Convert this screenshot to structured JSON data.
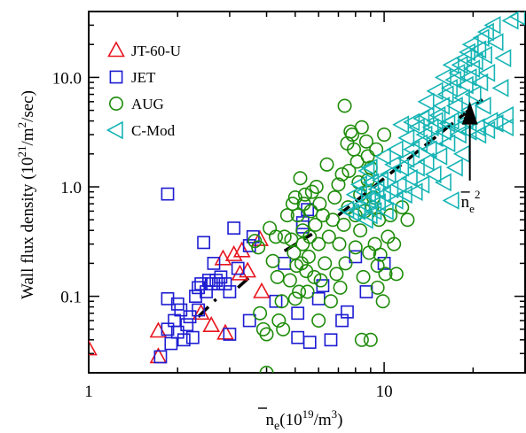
{
  "chart_data": {
    "type": "scatter",
    "xlabel": "n̄e(10¹⁹/m³)",
    "ylabel": "Wall flux density (10²¹/m²/sec)",
    "xscale": "log",
    "yscale": "log",
    "xlim": [
      1,
      30
    ],
    "ylim": [
      0.02,
      40
    ],
    "x_ticks": [
      1,
      10
    ],
    "x_tick_labels": [
      "1",
      "10"
    ],
    "y_ticks": [
      0.1,
      1,
      10
    ],
    "y_tick_labels": [
      "0.1",
      "1.0",
      "10.0"
    ],
    "grid": false,
    "legend_placement": "top-left",
    "annotation": "n̄e²",
    "series": [
      {
        "name": "JT-60-U",
        "marker": "triangle-up",
        "color": "#e8141e",
        "points": [
          [
            1.0,
            0.033
          ],
          [
            1.72,
            0.048
          ],
          [
            1.72,
            0.028
          ],
          [
            2.4,
            0.07
          ],
          [
            2.6,
            0.054
          ],
          [
            2.9,
            0.046
          ],
          [
            2.85,
            0.22
          ],
          [
            3.1,
            0.24
          ],
          [
            3.25,
            0.16
          ],
          [
            3.3,
            0.26
          ],
          [
            3.45,
            0.17
          ],
          [
            3.8,
            0.33
          ],
          [
            3.85,
            0.11
          ]
        ]
      },
      {
        "name": "JET",
        "marker": "square",
        "color": "#1c1cd2",
        "points": [
          [
            1.75,
            0.028
          ],
          [
            1.85,
            0.86
          ],
          [
            1.85,
            0.095
          ],
          [
            1.85,
            0.05
          ],
          [
            1.9,
            0.037
          ],
          [
            1.95,
            0.06
          ],
          [
            2.0,
            0.047
          ],
          [
            2.0,
            0.085
          ],
          [
            2.05,
            0.075
          ],
          [
            2.1,
            0.04
          ],
          [
            2.15,
            0.055
          ],
          [
            2.2,
            0.065
          ],
          [
            2.25,
            0.042
          ],
          [
            2.3,
            0.1
          ],
          [
            2.35,
            0.12
          ],
          [
            2.35,
            0.075
          ],
          [
            2.4,
            0.13
          ],
          [
            2.45,
            0.31
          ],
          [
            2.5,
            0.11
          ],
          [
            2.55,
            0.14
          ],
          [
            2.6,
            0.13
          ],
          [
            2.65,
            0.2
          ],
          [
            2.7,
            0.14
          ],
          [
            2.75,
            0.13
          ],
          [
            2.8,
            0.15
          ],
          [
            2.9,
            0.13
          ],
          [
            3.0,
            0.11
          ],
          [
            3.1,
            0.42
          ],
          [
            3.2,
            0.18
          ],
          [
            3.5,
            0.29
          ],
          [
            3.6,
            0.35
          ],
          [
            4.3,
            0.09
          ],
          [
            5.1,
            0.07
          ],
          [
            5.1,
            0.042
          ],
          [
            5.6,
            0.038
          ],
          [
            6.0,
            0.095
          ],
          [
            6.2,
            0.125
          ],
          [
            7.2,
            0.06
          ],
          [
            7.5,
            0.072
          ],
          [
            8.0,
            0.23
          ],
          [
            8.7,
            0.11
          ],
          [
            10.0,
            0.2
          ],
          [
            5.5,
            0.62
          ],
          [
            3.0,
            0.045
          ],
          [
            3.5,
            0.06
          ],
          [
            5.3,
            0.43
          ],
          [
            4.6,
            0.2
          ],
          [
            5.3,
            0.47
          ],
          [
            6.6,
            0.04
          ]
        ]
      },
      {
        "name": "AUG",
        "marker": "circle",
        "color": "#1e8c0a",
        "points": [
          [
            3.65,
            0.32
          ],
          [
            3.75,
            0.28
          ],
          [
            3.8,
            0.07
          ],
          [
            3.9,
            0.05
          ],
          [
            4.0,
            0.045
          ],
          [
            4.0,
            0.02
          ],
          [
            4.1,
            0.42
          ],
          [
            4.2,
            0.21
          ],
          [
            4.3,
            0.35
          ],
          [
            4.35,
            0.15
          ],
          [
            4.4,
            0.06
          ],
          [
            4.55,
            0.05
          ],
          [
            4.6,
            0.35
          ],
          [
            4.7,
            0.55
          ],
          [
            4.8,
            0.14
          ],
          [
            4.85,
            0.33
          ],
          [
            4.9,
            0.7
          ],
          [
            4.95,
            0.25
          ],
          [
            5.0,
            0.8
          ],
          [
            5.0,
            0.095
          ],
          [
            5.05,
            0.19
          ],
          [
            5.1,
            0.55
          ],
          [
            5.15,
            0.11
          ],
          [
            5.2,
            1.2
          ],
          [
            5.25,
            0.2
          ],
          [
            5.3,
            0.3
          ],
          [
            5.3,
            0.4
          ],
          [
            5.35,
            0.7
          ],
          [
            5.4,
            0.85
          ],
          [
            5.45,
            0.17
          ],
          [
            5.5,
            0.11
          ],
          [
            5.55,
            0.23
          ],
          [
            5.6,
            0.35
          ],
          [
            5.65,
            0.6
          ],
          [
            5.7,
            0.9
          ],
          [
            5.8,
            0.15
          ],
          [
            5.85,
            0.45
          ],
          [
            5.9,
            1.0
          ],
          [
            6.0,
            0.3
          ],
          [
            6.05,
            0.7
          ],
          [
            6.1,
            0.14
          ],
          [
            6.2,
            0.55
          ],
          [
            6.3,
            0.2
          ],
          [
            6.4,
            1.6
          ],
          [
            6.5,
            0.35
          ],
          [
            6.6,
            0.09
          ],
          [
            6.7,
            0.5
          ],
          [
            6.8,
            0.8
          ],
          [
            6.9,
            0.16
          ],
          [
            7.0,
            1.05
          ],
          [
            7.05,
            0.3
          ],
          [
            7.1,
            0.12
          ],
          [
            7.2,
            1.3
          ],
          [
            7.3,
            0.45
          ],
          [
            7.35,
            5.5
          ],
          [
            7.4,
            0.2
          ],
          [
            7.5,
            2.5
          ],
          [
            7.55,
            0.65
          ],
          [
            7.6,
            1.4
          ],
          [
            7.7,
            3.2
          ],
          [
            7.8,
            3.0
          ],
          [
            7.9,
            2.2
          ],
          [
            8.0,
            0.55
          ],
          [
            8.1,
            1.7
          ],
          [
            8.2,
            1.1
          ],
          [
            8.3,
            0.4
          ],
          [
            8.4,
            3.5
          ],
          [
            8.5,
            0.15
          ],
          [
            8.6,
            0.6
          ],
          [
            8.7,
            2.6
          ],
          [
            8.8,
            1.9
          ],
          [
            8.9,
            0.25
          ],
          [
            9.0,
            0.04
          ],
          [
            9.0,
            1.5
          ],
          [
            9.1,
            0.65
          ],
          [
            9.3,
            0.3
          ],
          [
            9.4,
            2.2
          ],
          [
            9.5,
            0.19
          ],
          [
            9.6,
            0.5
          ],
          [
            9.7,
            0.24
          ],
          [
            9.9,
            0.09
          ],
          [
            10.0,
            3.0
          ],
          [
            10.1,
            0.16
          ],
          [
            10.3,
            0.35
          ],
          [
            10.5,
            0.55
          ],
          [
            11.5,
            0.65
          ],
          [
            12.0,
            0.5
          ],
          [
            8.4,
            0.04
          ],
          [
            9.5,
            0.12
          ],
          [
            10.8,
            0.3
          ],
          [
            11.0,
            0.16
          ],
          [
            9.2,
            0.8
          ],
          [
            8.8,
            1.15
          ],
          [
            8.3,
            0.85
          ],
          [
            8.0,
            0.28
          ],
          [
            6.0,
            0.06
          ],
          [
            4.5,
            0.09
          ]
        ]
      },
      {
        "name": "C-Mod",
        "marker": "triangle-left",
        "color": "#16b4b4",
        "points": [
          [
            7.5,
            0.62
          ],
          [
            7.8,
            0.58
          ],
          [
            8.0,
            0.85
          ],
          [
            8.2,
            0.6
          ],
          [
            8.3,
            1.05
          ],
          [
            8.5,
            0.7
          ],
          [
            8.6,
            0.9
          ],
          [
            8.7,
            0.5
          ],
          [
            8.8,
            1.4
          ],
          [
            8.9,
            0.75
          ],
          [
            9.0,
            0.55
          ],
          [
            9.1,
            1.1
          ],
          [
            9.2,
            0.82
          ],
          [
            9.3,
            0.6
          ],
          [
            9.5,
            0.95
          ],
          [
            9.6,
            0.72
          ],
          [
            9.8,
            1.15
          ],
          [
            10.0,
            0.85
          ],
          [
            10.2,
            0.6
          ],
          [
            10.4,
            1.3
          ],
          [
            10.6,
            0.95
          ],
          [
            10.8,
            1.6
          ],
          [
            11.0,
            0.75
          ],
          [
            11.3,
            1.05
          ],
          [
            11.5,
            1.5
          ],
          [
            11.8,
            0.85
          ],
          [
            12.0,
            1.8
          ],
          [
            12.3,
            1.2
          ],
          [
            12.5,
            2.2
          ],
          [
            12.8,
            0.9
          ],
          [
            13.0,
            1.5
          ],
          [
            13.3,
            2.5
          ],
          [
            13.5,
            1.05
          ],
          [
            13.8,
            3.0
          ],
          [
            14.0,
            1.7
          ],
          [
            14.0,
            4.5
          ],
          [
            14.3,
            2.2
          ],
          [
            14.5,
            3.5
          ],
          [
            14.8,
            1.3
          ],
          [
            15.0,
            2.8
          ],
          [
            15.3,
            4.5
          ],
          [
            15.5,
            1.9
          ],
          [
            15.8,
            5.5
          ],
          [
            16.0,
            3.2
          ],
          [
            16.0,
            1.1
          ],
          [
            16.3,
            7.0
          ],
          [
            16.5,
            2.5
          ],
          [
            16.8,
            8.0
          ],
          [
            17.0,
            4.0
          ],
          [
            17.0,
            0.75
          ],
          [
            17.3,
            9.5
          ],
          [
            17.5,
            5.5
          ],
          [
            17.5,
            1.5
          ],
          [
            17.8,
            11.0
          ],
          [
            18.0,
            3.0
          ],
          [
            18.2,
            13.0
          ],
          [
            18.5,
            6.5
          ],
          [
            18.5,
            2.0
          ],
          [
            18.8,
            15.0
          ],
          [
            19.0,
            8.5
          ],
          [
            19.0,
            4.0
          ],
          [
            19.3,
            17.0
          ],
          [
            19.5,
            10.0
          ],
          [
            19.5,
            5.0
          ],
          [
            19.8,
            20.0
          ],
          [
            20.0,
            12.0
          ],
          [
            20.2,
            7.0
          ],
          [
            20.5,
            14.0
          ],
          [
            20.8,
            3.5
          ],
          [
            21.0,
            18.0
          ],
          [
            21.3,
            9.0
          ],
          [
            21.5,
            23.0
          ],
          [
            21.8,
            5.5
          ],
          [
            22.0,
            16.0
          ],
          [
            22.3,
            26.0
          ],
          [
            22.5,
            11.0
          ],
          [
            23.0,
            4.0
          ],
          [
            23.5,
            30.0
          ],
          [
            24.0,
            21.0
          ],
          [
            25.0,
            8.0
          ],
          [
            25.5,
            15.0
          ],
          [
            26.0,
            4.5
          ],
          [
            27.0,
            33.0
          ],
          [
            28.5,
            36.0
          ],
          [
            16.0,
            10.0
          ],
          [
            17.0,
            13.0
          ],
          [
            15.0,
            7.5
          ],
          [
            14.0,
            6.0
          ],
          [
            13.0,
            3.5
          ],
          [
            12.0,
            2.8
          ],
          [
            11.0,
            2.2
          ],
          [
            10.0,
            1.9
          ],
          [
            9.0,
            1.5
          ],
          [
            15.0,
            4.0
          ],
          [
            16.5,
            3.8
          ],
          [
            18.0,
            3.5
          ],
          [
            19.5,
            3.2
          ],
          [
            21.0,
            3.0
          ],
          [
            22.5,
            3.3
          ],
          [
            24.0,
            3.8
          ],
          [
            26.0,
            3.5
          ],
          [
            13.5,
            4.2
          ],
          [
            12.5,
            3.9
          ],
          [
            11.5,
            3.7
          ]
        ]
      }
    ],
    "fit_lines": [
      {
        "x": [
          2.35,
          2.7
        ],
        "y": [
          0.065,
          0.094
        ]
      },
      {
        "x": [
          3.2,
          3.6
        ],
        "y": [
          0.12,
          0.16
        ]
      },
      {
        "x": [
          4.6,
          5.7
        ],
        "y": [
          0.26,
          0.37
        ]
      },
      {
        "x": [
          7.0,
          21.5
        ],
        "y": [
          0.55,
          6.3
        ]
      }
    ],
    "annotation_arrow": {
      "x": 19.5,
      "y_from": 1.1,
      "y_to": 5.0
    }
  }
}
